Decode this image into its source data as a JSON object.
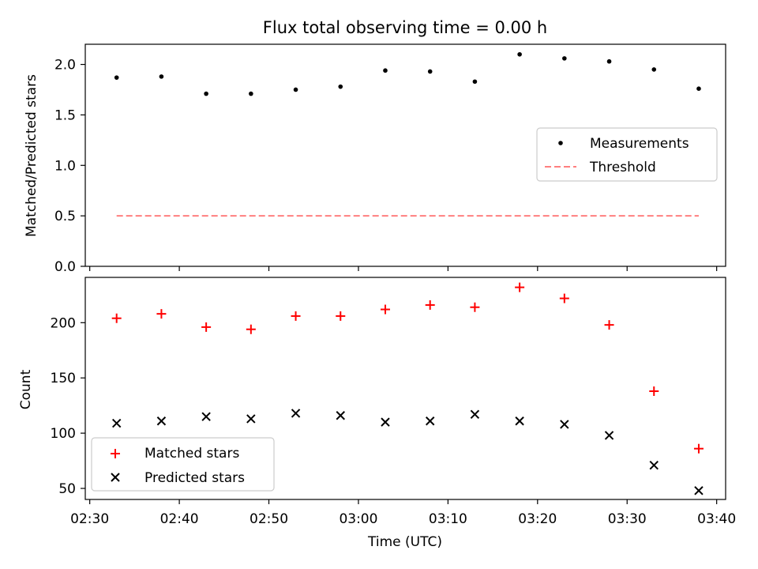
{
  "chart_data": [
    {
      "type": "scatter",
      "title": "Flux total observing time = 0.00 h",
      "xlabel": "",
      "ylabel": "Matched/Predicted stars",
      "xlim_minutes": [
        149.5,
        221.0
      ],
      "ylim": [
        0,
        2.2
      ],
      "yticks": [
        0.0,
        0.5,
        1.0,
        1.5,
        2.0
      ],
      "ytick_labels": [
        "0.0",
        "0.5",
        "1.0",
        "1.5",
        "2.0"
      ],
      "legend_position": "center-right",
      "series": [
        {
          "name": "Measurements",
          "marker": "dot",
          "color": "#000000",
          "x_minutes": [
            153,
            158,
            163,
            168,
            173,
            178,
            183,
            188,
            193,
            198,
            203,
            208,
            213,
            218
          ],
          "values": [
            1.87,
            1.88,
            1.71,
            1.71,
            1.75,
            1.78,
            1.94,
            1.93,
            1.83,
            2.1,
            2.06,
            2.03,
            1.95,
            1.76
          ]
        },
        {
          "name": "Threshold",
          "marker": "dashed-line",
          "color": "#ff7f7f",
          "x_minutes": [
            153,
            218
          ],
          "values": [
            0.5,
            0.5
          ]
        }
      ]
    },
    {
      "type": "scatter",
      "xlabel": "Time (UTC)",
      "ylabel": "Count",
      "xlim_minutes": [
        149.5,
        221.0
      ],
      "xticks_minutes": [
        150,
        160,
        170,
        180,
        190,
        200,
        210,
        220
      ],
      "xtick_labels": [
        "02:30",
        "02:40",
        "02:50",
        "03:00",
        "03:10",
        "03:20",
        "03:30",
        "03:40"
      ],
      "ylim": [
        40,
        241
      ],
      "yticks": [
        50,
        100,
        150,
        200
      ],
      "ytick_labels": [
        "50",
        "100",
        "150",
        "200"
      ],
      "legend_position": "lower-left",
      "series": [
        {
          "name": "Matched stars",
          "marker": "plus",
          "color": "#ff0000",
          "x_minutes": [
            153,
            158,
            163,
            168,
            173,
            178,
            183,
            188,
            193,
            198,
            203,
            208,
            213,
            218
          ],
          "values": [
            204,
            208,
            196,
            194,
            206,
            206,
            212,
            216,
            214,
            232,
            222,
            198,
            138,
            86
          ]
        },
        {
          "name": "Predicted stars",
          "marker": "x",
          "color": "#000000",
          "x_minutes": [
            153,
            158,
            163,
            168,
            173,
            178,
            183,
            188,
            193,
            198,
            203,
            208,
            213,
            218
          ],
          "values": [
            109,
            111,
            115,
            113,
            118,
            116,
            110,
            111,
            117,
            111,
            108,
            98,
            71,
            48
          ]
        }
      ]
    }
  ]
}
